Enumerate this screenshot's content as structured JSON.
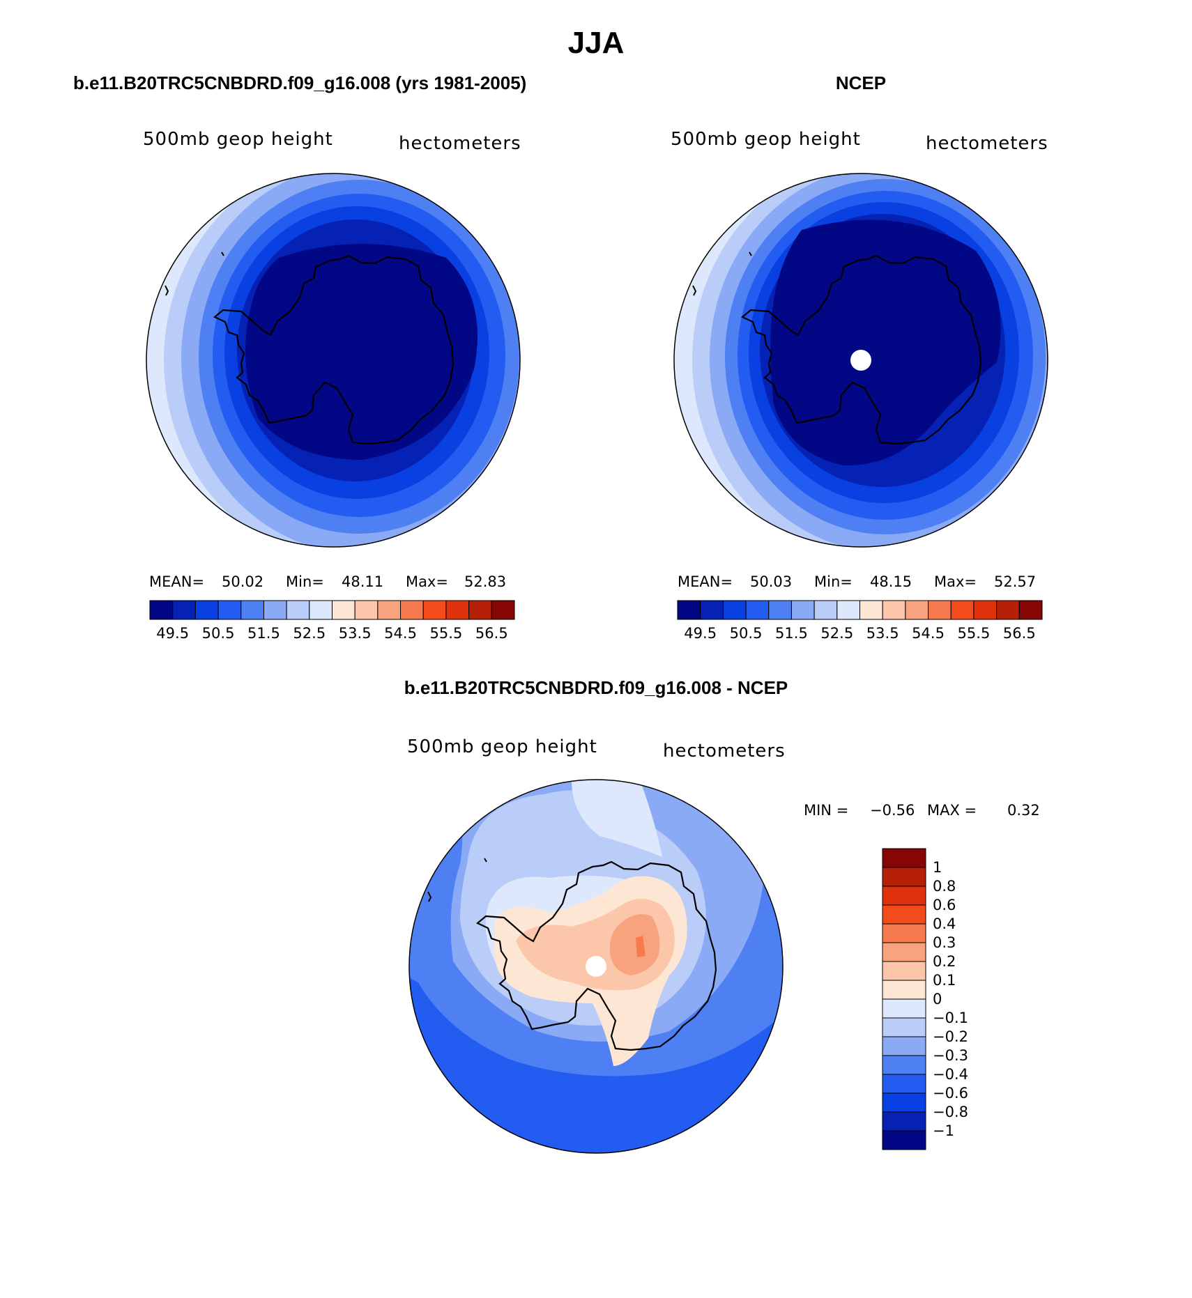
{
  "figure_title": "JJA",
  "panels": {
    "model": {
      "heading": "b.e11.B20TRC5CNBDRD.f09_g16.008 (yrs 1981-2005)",
      "variable": "500mb geop height",
      "units": "hectometers",
      "stats": {
        "mean_label": "MEAN=",
        "mean": "50.02",
        "min_label": "Min=",
        "min": "48.11",
        "max_label": "Max=",
        "max": "52.83"
      }
    },
    "obs": {
      "heading": "NCEP",
      "variable": "500mb geop height",
      "units": "hectometers",
      "stats": {
        "mean_label": "MEAN=",
        "mean": "50.03",
        "min_label": "Min=",
        "min": "48.15",
        "max_label": "Max=",
        "max": "52.57"
      }
    },
    "diff": {
      "heading": "b.e11.B20TRC5CNBDRD.f09_g16.008 - NCEP",
      "variable": "500mb geop height",
      "units": "hectometers",
      "stats": {
        "min_label": "MIN =",
        "min": "−0.56",
        "max_label": "MAX =",
        "max": "0.32"
      }
    }
  },
  "chart_data": [
    {
      "type": "heatmap",
      "projection": "south-polar-stereographic",
      "title": "b.e11.B20TRC5CNBDRD.f09_g16.008 (yrs 1981-2005)",
      "variable": "500mb geop height",
      "units": "hectometers",
      "mean": 50.02,
      "min": 48.11,
      "max": 52.83,
      "contour_levels": [
        49.5,
        50,
        50.5,
        51,
        51.5,
        52,
        52.5,
        53,
        53.5,
        54,
        54.5,
        55,
        55.5,
        56,
        56.5
      ],
      "colorbar_labels": [
        "49.5",
        "50.5",
        "51.5",
        "52.5",
        "53.5",
        "54.5",
        "55.5",
        "56.5"
      ],
      "colors": [
        "#020786",
        "#0522b4",
        "#0940e2",
        "#235cf1",
        "#4f80f3",
        "#8aaaf5",
        "#b9cdf8",
        "#dde8fc",
        "#fde6d4",
        "#fbc6aa",
        "#f9a37e",
        "#f77a4e",
        "#f44b1d",
        "#e0300c",
        "#b62006",
        "#860606"
      ]
    },
    {
      "type": "heatmap",
      "projection": "south-polar-stereographic",
      "title": "NCEP",
      "variable": "500mb geop height",
      "units": "hectometers",
      "mean": 50.03,
      "min": 48.15,
      "max": 52.57,
      "contour_levels": [
        49.5,
        50,
        50.5,
        51,
        51.5,
        52,
        52.5,
        53,
        53.5,
        54,
        54.5,
        55,
        55.5,
        56,
        56.5
      ],
      "colorbar_labels": [
        "49.5",
        "50.5",
        "51.5",
        "52.5",
        "53.5",
        "54.5",
        "55.5",
        "56.5"
      ],
      "colors": [
        "#020786",
        "#0522b4",
        "#0940e2",
        "#235cf1",
        "#4f80f3",
        "#8aaaf5",
        "#b9cdf8",
        "#dde8fc",
        "#fde6d4",
        "#fbc6aa",
        "#f9a37e",
        "#f77a4e",
        "#f44b1d",
        "#e0300c",
        "#b62006",
        "#860606"
      ]
    },
    {
      "type": "heatmap",
      "projection": "south-polar-stereographic",
      "title": "b.e11.B20TRC5CNBDRD.f09_g16.008 - NCEP",
      "variable": "500mb geop height",
      "units": "hectometers",
      "min": -0.56,
      "max": 0.32,
      "contour_levels": [
        -1,
        -0.8,
        -0.6,
        -0.4,
        -0.3,
        -0.2,
        -0.1,
        0,
        0.1,
        0.2,
        0.3,
        0.4,
        0.6,
        0.8,
        1
      ],
      "colorbar_labels": [
        "1",
        "0.8",
        "0.6",
        "0.4",
        "0.3",
        "0.2",
        "0.1",
        "0",
        "−0.1",
        "−0.2",
        "−0.3",
        "−0.4",
        "−0.6",
        "−0.8",
        "−1"
      ],
      "colors_top_to_bottom": [
        "#860606",
        "#b62006",
        "#e0300c",
        "#f44b1d",
        "#f77a4e",
        "#f9a37e",
        "#fbc6aa",
        "#fde6d4",
        "#dde8fc",
        "#b9cdf8",
        "#8aaaf5",
        "#4f80f3",
        "#235cf1",
        "#0940e2",
        "#0522b4",
        "#020786"
      ]
    }
  ]
}
